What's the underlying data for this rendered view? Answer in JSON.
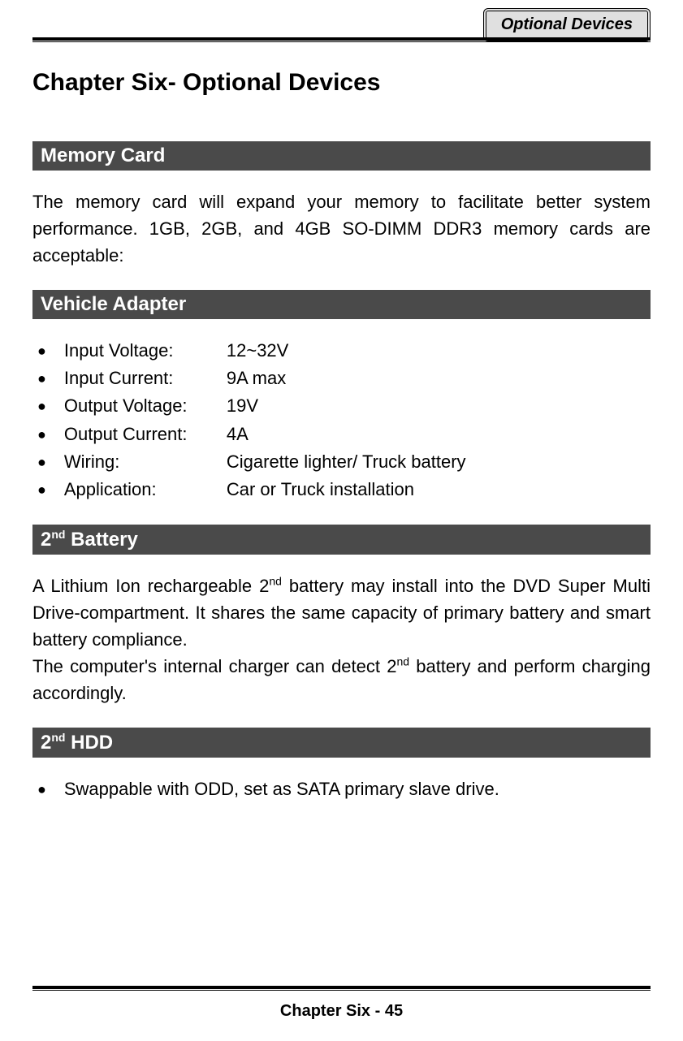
{
  "header": {
    "tab_label": "Optional Devices"
  },
  "chapter": {
    "title": "Chapter Six- Optional Devices"
  },
  "sections": {
    "memory_card": {
      "heading": "Memory Card",
      "text": "The memory card will expand your memory to facilitate better system performance. 1GB, 2GB, and 4GB SO-DIMM DDR3 memory cards are acceptable:"
    },
    "vehicle_adapter": {
      "heading": "Vehicle Adapter",
      "specs": [
        {
          "label": "Input Voltage:",
          "value": "12~32V"
        },
        {
          "label": "Input Current:",
          "value": "9A max"
        },
        {
          "label": "Output Voltage:",
          "value": "19V"
        },
        {
          "label": "Output Current:",
          "value": "4A"
        },
        {
          "label": "Wiring:",
          "value": "Cigarette lighter/ Truck battery"
        },
        {
          "label": "Application:",
          "value": "Car or Truck installation"
        }
      ]
    },
    "second_battery": {
      "heading_prefix": "2",
      "heading_sup": "nd",
      "heading_suffix": " Battery",
      "para1_a": "A Lithium Ion rechargeable 2",
      "para1_sup": "nd",
      "para1_b": " battery may install into the DVD Super Multi Drive-compartment. It shares the same capacity of primary battery and smart battery compliance.",
      "para2_a": "The computer's internal charger can detect 2",
      "para2_sup": "nd",
      "para2_b": " battery and perform charging accordingly."
    },
    "second_hdd": {
      "heading_prefix": "2",
      "heading_sup": "nd",
      "heading_suffix": " HDD",
      "item": "Swappable with ODD, set as SATA primary slave drive."
    }
  },
  "footer": {
    "text": "Chapter Six - 45"
  },
  "colors": {
    "section_bg": "#4a4a4a",
    "section_fg": "#ffffff",
    "tab_bg": "#e0e0e0",
    "page_bg": "#ffffff",
    "text": "#000000"
  },
  "typography": {
    "title_fontsize": 30,
    "section_fontsize": 24,
    "body_fontsize": 22,
    "footer_fontsize": 20,
    "tab_fontsize": 20
  }
}
